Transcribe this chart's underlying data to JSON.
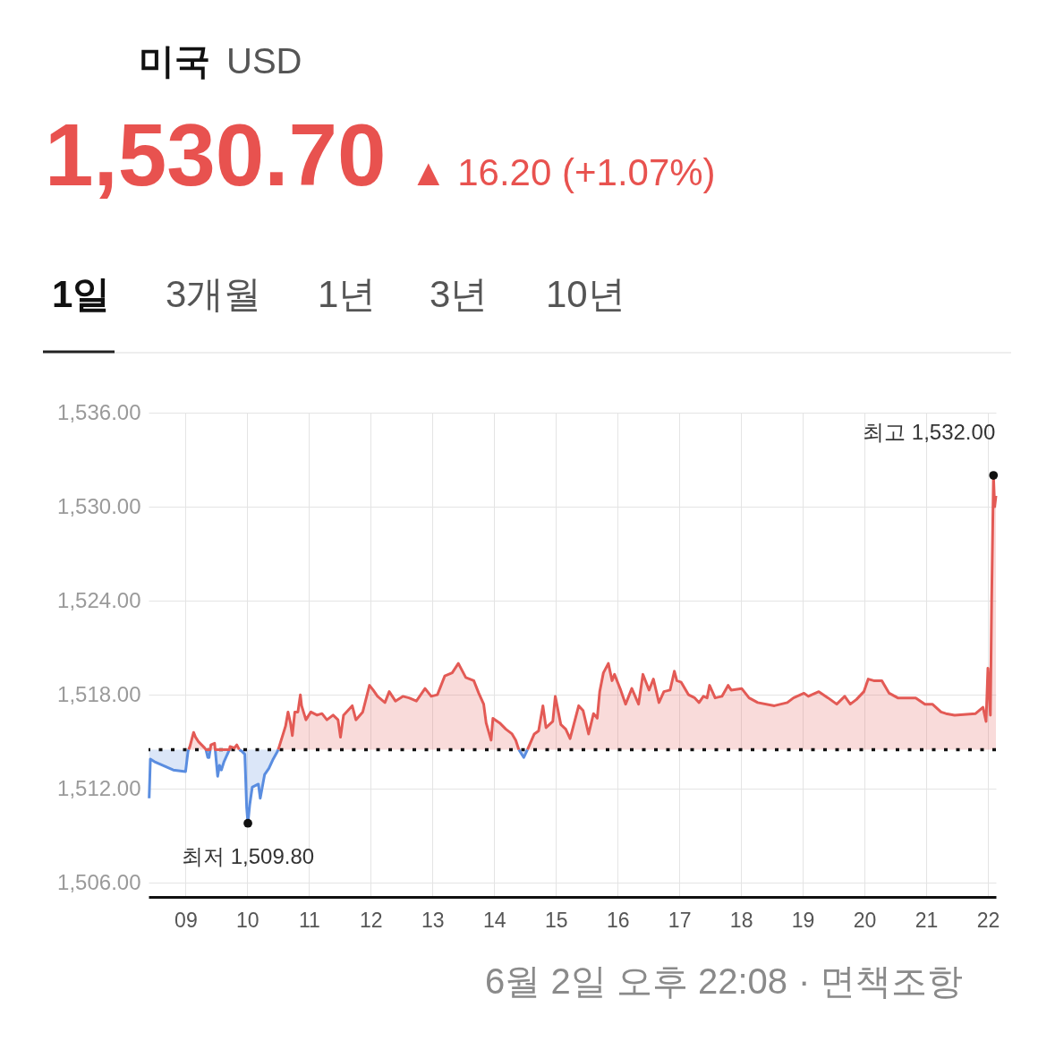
{
  "chart_data": {
    "type": "line",
    "title": "미국",
    "subtitle": "USD",
    "annotations": [
      "1,530.70",
      "▲ 16.20 (+1.07%)",
      "1일",
      "3개월",
      "1년",
      "3년",
      "10년",
      {
        "text": "최고 1,532.00",
        "x": 22.09,
        "y": 1532.0
      },
      {
        "text": "최저 1,509.80",
        "x": 10.01,
        "y": 1509.8
      },
      "6월 2일 오후 22:08",
      "· 면책조항"
    ],
    "series": [
      {
        "color": "#e35a55",
        "x": [
          9.05,
          9.07,
          9.13,
          9.16,
          9.21,
          9.26,
          9.31,
          9.33,
          9.4,
          9.41,
          9.47,
          9.48,
          9.71,
          9.72,
          9.79,
          9.83,
          9.87,
          10.2,
          10.5,
          10.51,
          10.62,
          10.66,
          10.7,
          10.73,
          10.77,
          10.82,
          10.86,
          10.88,
          10.95,
          11.03,
          11.13,
          11.21,
          11.29,
          11.39,
          11.47,
          11.51,
          11.56,
          11.7,
          11.76,
          11.87,
          11.98,
          12.04,
          12.11,
          12.23,
          12.3,
          12.4,
          12.52,
          12.62,
          12.74,
          12.88,
          12.98,
          13.08,
          13.2,
          13.32,
          13.42,
          13.46,
          13.54,
          13.67,
          13.75,
          13.83,
          13.87,
          13.95,
          13.98,
          14.09,
          14.19,
          14.29,
          14.35,
          14.4,
          14.47,
          14.54,
          14.65,
          14.72,
          14.79,
          14.84,
          14.95,
          14.99,
          15.08,
          15.16,
          15.23,
          15.33,
          15.37,
          15.44,
          15.53,
          15.61,
          15.67,
          15.71,
          15.77,
          15.85,
          15.91,
          15.95,
          16.05,
          16.13,
          16.23,
          16.34,
          16.41,
          16.51,
          16.58,
          16.67,
          16.75,
          16.85,
          16.92,
          16.96,
          17.03,
          17.15,
          17.25,
          17.32,
          17.39,
          17.45,
          17.49,
          17.58,
          17.69,
          17.79,
          17.84,
          18.01,
          18.13,
          18.27,
          18.54,
          18.75,
          18.85,
          19.02,
          19.09,
          19.26,
          19.41,
          19.55,
          19.68,
          19.77,
          19.87,
          19.99,
          20.06,
          20.15,
          20.28,
          20.4,
          20.54,
          20.83,
          20.98,
          21.1,
          21.24,
          21.32,
          21.46,
          21.8,
          21.92,
          21.97,
          22.0,
          22.04,
          22.06,
          22.09,
          22.11,
          22.13
        ],
        "values": [
          1514.5,
          1514.7,
          1515.6,
          1515.3,
          1515.0,
          1514.8,
          1514.6,
          1514.5,
          1514.5,
          1514.8,
          1514.9,
          1514.5,
          1514.5,
          1514.7,
          1514.6,
          1514.8,
          1514.5,
          null,
          1514.5,
          1514.6,
          1516.0,
          1516.9,
          1516.2,
          1515.4,
          1516.9,
          1516.9,
          1518.0,
          1517.3,
          1516.4,
          1516.9,
          1516.7,
          1516.8,
          1516.4,
          1516.7,
          1516.4,
          1515.3,
          1516.7,
          1517.3,
          1516.4,
          1516.9,
          1518.6,
          1518.3,
          1517.9,
          1517.5,
          1518.2,
          1517.6,
          1517.9,
          1517.8,
          1517.6,
          1518.4,
          1517.9,
          1518.0,
          1519.2,
          1519.4,
          1520.0,
          1519.7,
          1519.1,
          1518.9,
          1518.1,
          1517.4,
          1516.2,
          1515.1,
          1516.5,
          1516.2,
          1515.8,
          1515.5,
          1515.1,
          1514.5,
          null,
          1514.5,
          1515.5,
          1515.7,
          1517.3,
          1515.9,
          1516.3,
          1517.9,
          1516.1,
          1515.8,
          1515.2,
          1516.7,
          1517.3,
          1517.0,
          1515.5,
          1516.8,
          1516.5,
          1518.2,
          1519.4,
          1520.0,
          1518.9,
          1519.3,
          1518.3,
          1517.4,
          1518.4,
          1517.4,
          1519.3,
          1518.3,
          1519.0,
          1517.5,
          1518.2,
          1518.3,
          1519.5,
          1518.9,
          1518.8,
          1518.0,
          1517.8,
          1517.5,
          1517.9,
          1517.8,
          1518.6,
          1517.8,
          1517.9,
          1518.6,
          1518.3,
          1518.4,
          1517.8,
          1517.5,
          1517.3,
          1517.5,
          1517.8,
          1518.1,
          1517.9,
          1518.2,
          1517.8,
          1517.4,
          1517.9,
          1517.4,
          1517.7,
          1518.2,
          1519.0,
          1518.9,
          1518.9,
          1518.1,
          1517.8,
          1517.8,
          1517.4,
          1517.4,
          1516.9,
          1516.8,
          1516.7,
          1516.8,
          1517.2,
          1516.3,
          1519.7,
          1516.7,
          1523.9,
          1532.0,
          1530.0,
          1530.7
        ],
        "lower": [
          1514.5,
          1514.5,
          1514.5,
          1514.5,
          1514.5,
          1514.5,
          1514.5,
          1514.5,
          1514.5,
          1514.5,
          1514.5,
          1514.5,
          1514.5,
          1514.5,
          1514.5,
          1514.5,
          1514.5,
          null,
          1514.5,
          1514.5,
          1514.5,
          1514.5,
          1514.5,
          1514.5,
          1514.5,
          1514.5,
          1514.5,
          1514.5,
          1514.5,
          1514.5,
          1514.5,
          1514.5,
          1514.5,
          1514.5,
          1514.5,
          1514.5,
          1514.5,
          1514.5,
          1514.5,
          1514.5,
          1514.5,
          1514.5,
          1514.5,
          1514.5,
          1514.5,
          1514.5,
          1514.5,
          1514.5,
          1514.5,
          1514.5,
          1514.5,
          1514.5,
          1514.5,
          1514.5,
          1514.5,
          1514.5,
          1514.5,
          1514.5,
          1514.5,
          1514.5,
          1514.5,
          1514.5,
          1514.5,
          1514.5,
          1514.5,
          1514.5,
          1514.5,
          1514.5,
          null,
          1514.5,
          1514.5,
          1514.5,
          1514.5,
          1514.5,
          1514.5,
          1514.5,
          1514.5,
          1514.5,
          1514.5,
          1514.5,
          1514.5,
          1514.5,
          1514.5,
          1514.5,
          1514.5,
          1514.5,
          1514.5,
          1514.5,
          1514.5,
          1514.5,
          1514.5,
          1514.5,
          1514.5,
          1514.5,
          1514.5,
          1514.5,
          1514.5,
          1514.5,
          1514.5,
          1514.5,
          1514.5,
          1514.5,
          1514.5,
          1514.5,
          1514.5,
          1514.5,
          1514.5,
          1514.5,
          1514.5,
          1514.5,
          1514.5,
          1514.5,
          1514.5,
          1514.5,
          1514.5,
          1514.5,
          1514.5,
          1514.5,
          1514.5,
          1514.5,
          1514.5,
          1514.5,
          1514.5,
          1514.5,
          1514.5,
          1514.5,
          1514.5,
          1514.5,
          1514.5,
          1514.5,
          1514.5,
          1514.5,
          1514.5,
          1514.5,
          1514.5,
          1514.5,
          1514.5,
          1514.5,
          1514.5,
          1514.5,
          1514.5,
          1514.5,
          1514.5,
          1514.5,
          1514.5,
          1514.5,
          1514.5,
          1514.5
        ],
        "upper": [
          1514.5,
          1514.7,
          1515.6,
          1515.3,
          1515.0,
          1514.8,
          1514.6,
          1514.5,
          1514.5,
          1514.8,
          1514.9,
          1514.5,
          1514.5,
          1514.7,
          1514.6,
          1514.8,
          1514.5,
          null,
          1514.5,
          1514.6,
          1516.0,
          1516.9,
          1516.2,
          1515.4,
          1516.9,
          1516.9,
          1518.0,
          1517.3,
          1516.4,
          1516.9,
          1516.7,
          1516.8,
          1516.4,
          1516.7,
          1516.4,
          1515.3,
          1516.7,
          1517.3,
          1516.4,
          1516.9,
          1518.6,
          1518.3,
          1517.9,
          1517.5,
          1518.2,
          1517.6,
          1517.9,
          1517.8,
          1517.6,
          1518.4,
          1517.9,
          1518.0,
          1519.2,
          1519.4,
          1520.0,
          1519.7,
          1519.1,
          1518.9,
          1518.1,
          1517.4,
          1516.2,
          1515.1,
          1516.5,
          1516.2,
          1515.8,
          1515.5,
          1515.1,
          1514.5,
          null,
          1514.5,
          1515.5,
          1515.7,
          1517.3,
          1515.9,
          1516.3,
          1517.9,
          1516.1,
          1515.8,
          1515.2,
          1516.7,
          1517.3,
          1517.0,
          1515.5,
          1516.8,
          1516.5,
          1518.2,
          1519.4,
          1520.0,
          1518.9,
          1519.3,
          1518.3,
          1517.4,
          1518.4,
          1517.4,
          1519.3,
          1518.3,
          1519.0,
          1517.5,
          1518.2,
          1518.3,
          1519.5,
          1518.9,
          1518.8,
          1518.0,
          1517.8,
          1517.5,
          1517.9,
          1517.8,
          1518.6,
          1517.8,
          1517.9,
          1518.6,
          1518.3,
          1518.4,
          1517.8,
          1517.5,
          1517.3,
          1517.5,
          1517.8,
          1518.1,
          1517.9,
          1518.2,
          1517.8,
          1517.4,
          1517.9,
          1517.4,
          1517.7,
          1518.2,
          1519.0,
          1518.9,
          1518.9,
          1518.1,
          1517.8,
          1517.8,
          1517.4,
          1517.4,
          1516.9,
          1516.8,
          1516.7,
          1516.8,
          1517.2,
          1516.3,
          1519.7,
          1516.7,
          1523.9,
          1532.0,
          1530.0,
          1530.7
        ]
      },
      {
        "color": "#5a8de0",
        "x": [
          8.41,
          8.43,
          8.51,
          8.8,
          9.0,
          9.04,
          9.05,
          9.2,
          9.33,
          9.36,
          9.38,
          9.4,
          9.44,
          9.48,
          9.52,
          9.55,
          9.58,
          9.62,
          9.7,
          9.71,
          9.8,
          9.87,
          9.91,
          9.96,
          9.99,
          10.01,
          10.04,
          10.08,
          10.13,
          10.18,
          10.21,
          10.28,
          10.35,
          10.42,
          10.49,
          10.5,
          12.0,
          14.4,
          14.48,
          14.54
        ],
        "values": [
          1511.4,
          1513.9,
          1513.7,
          1513.2,
          1513.1,
          1514.4,
          1514.5,
          null,
          1514.5,
          1514.0,
          1514.0,
          1514.5,
          null,
          1514.5,
          1512.8,
          1513.5,
          1513.2,
          1513.7,
          1514.4,
          1514.5,
          null,
          1514.5,
          1514.4,
          1514.2,
          1510.8,
          1509.8,
          1511.0,
          1512.1,
          1512.2,
          1512.3,
          1511.4,
          1512.9,
          1513.3,
          1513.9,
          1514.4,
          1514.5,
          null,
          1514.5,
          1514.0,
          1514.5
        ],
        "lower": [
          1511.4,
          1513.9,
          1513.7,
          1513.2,
          1513.1,
          1514.4,
          1514.5,
          null,
          1514.5,
          1514.0,
          1514.0,
          1514.5,
          null,
          1514.5,
          1512.8,
          1513.5,
          1513.2,
          1513.7,
          1514.4,
          1514.5,
          null,
          1514.5,
          1514.4,
          1514.2,
          1510.8,
          1509.8,
          1511.0,
          1512.1,
          1512.2,
          1512.3,
          1511.4,
          1512.9,
          1513.3,
          1513.9,
          1514.4,
          1514.5,
          null,
          1514.5,
          1514.0,
          1514.5
        ],
        "upper": [
          1514.5,
          1514.5,
          1514.5,
          1514.5,
          1514.5,
          1514.5,
          1514.5,
          null,
          1514.5,
          1514.5,
          1514.5,
          1514.5,
          null,
          1514.5,
          1514.5,
          1514.5,
          1514.5,
          1514.5,
          1514.5,
          1514.5,
          null,
          1514.5,
          1514.5,
          1514.5,
          1514.5,
          1514.5,
          1514.5,
          1514.5,
          1514.5,
          1514.5,
          1514.5,
          1514.5,
          1514.5,
          1514.5,
          1514.5,
          1514.5,
          null,
          1514.5,
          1514.5,
          1514.5
        ]
      },
      {
        "type": "scatter",
        "color": "#111111",
        "marker": "circle",
        "x": [
          10.01,
          22.09
        ],
        "values": [
          1509.8,
          1532.0
        ]
      }
    ],
    "xlim": [
      8.4,
      22.13
    ],
    "xticks": [
      {
        "value": 9,
        "label": "09"
      },
      10,
      11,
      12,
      13,
      14,
      15,
      16,
      17,
      18,
      19,
      20,
      21,
      22
    ],
    "ylim": [
      1505.1,
      1536
    ],
    "yticks": [
      {
        "value": 1506,
        "label": "1,506.00"
      },
      {
        "value": 1512,
        "label": "1,512.00"
      },
      {
        "value": 1518,
        "label": "1,518.00"
      },
      {
        "value": 1524,
        "label": "1,524.00"
      },
      {
        "value": 1530,
        "label": "1,530.00"
      },
      {
        "value": 1536,
        "label": "1,536.00"
      }
    ],
    "ref_lines": [
      {
        "axis": "y",
        "value": 1514.5,
        "color": "#111111",
        "line_style": "dotted"
      }
    ],
    "grid": true,
    "line_style": "solid"
  }
}
